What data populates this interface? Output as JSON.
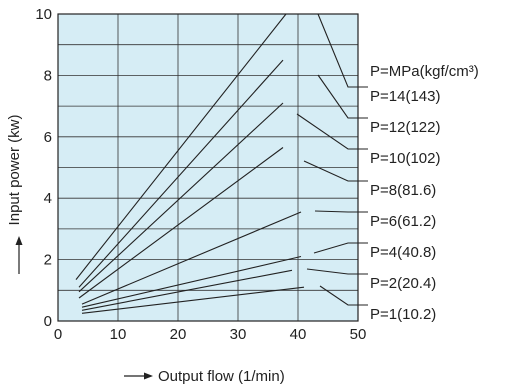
{
  "chart_data": {
    "type": "line",
    "xlabel": "Output flow (1/min)",
    "ylabel": "Input power (kw)",
    "xlim": [
      0,
      50
    ],
    "ylim": [
      0,
      10
    ],
    "x_ticks": [
      "0",
      "10",
      "20",
      "30",
      "40",
      "50"
    ],
    "y_ticks": [
      "0",
      "2",
      "4",
      "6",
      "8",
      "10"
    ],
    "x_tick_values": [
      0,
      10,
      20,
      30,
      40,
      50
    ],
    "y_tick_values": [
      0,
      2,
      4,
      6,
      8,
      10
    ],
    "x_grid": [
      0,
      10,
      20,
      30,
      40,
      50
    ],
    "y_grid": [
      0,
      1,
      2,
      3,
      4,
      5,
      6,
      7,
      8,
      9,
      10
    ],
    "grid": true,
    "background_color": "#d6edf5",
    "line_color": "#222222",
    "legend_title": "P=MPa(kgf/cm³)",
    "series": [
      {
        "name": "P=14(143)",
        "x": [
          3,
          38
        ],
        "y": [
          1.35,
          10.0
        ]
      },
      {
        "name": "P=12(122)",
        "x": [
          3.5,
          37.5
        ],
        "y": [
          1.1,
          8.5
        ]
      },
      {
        "name": "P=10(102)",
        "x": [
          3.5,
          37.5
        ],
        "y": [
          0.95,
          7.1
        ]
      },
      {
        "name": "P=8(81.6)",
        "x": [
          3.5,
          37.5
        ],
        "y": [
          0.75,
          5.65
        ]
      },
      {
        "name": "P=6(61.2)",
        "x": [
          4,
          40.5
        ],
        "y": [
          0.55,
          3.55
        ]
      },
      {
        "name": "P=4(40.8)",
        "x": [
          4,
          40.5
        ],
        "y": [
          0.45,
          2.1
        ]
      },
      {
        "name": "P=2(20.4)",
        "x": [
          4,
          39
        ],
        "y": [
          0.35,
          1.65
        ]
      },
      {
        "name": "P=1(10.2)",
        "x": [
          4,
          41
        ],
        "y": [
          0.25,
          1.1
        ]
      }
    ]
  }
}
